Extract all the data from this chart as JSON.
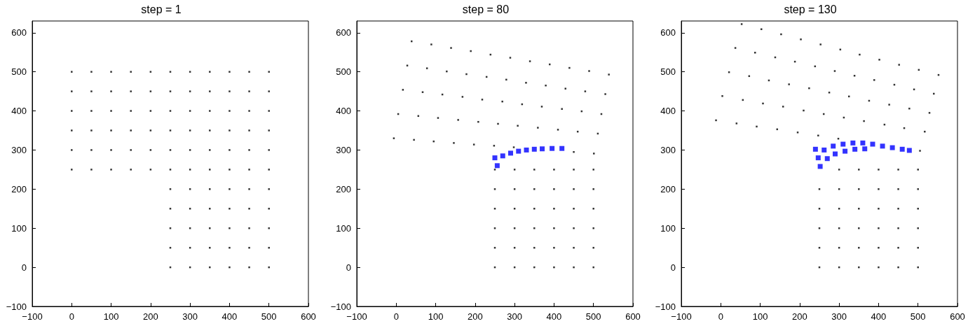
{
  "chart_data": [
    {
      "type": "scatter",
      "title": "step = 1",
      "xlim": [
        -100,
        600
      ],
      "xticks": [
        -100,
        0,
        100,
        200,
        300,
        400,
        500,
        600
      ],
      "ylim": [
        -100,
        630
      ],
      "yticks": [
        -100,
        0,
        100,
        200,
        300,
        400,
        500,
        600
      ],
      "marker": "square",
      "series": [
        {
          "color": "#000000",
          "x": [
            0,
            50,
            100,
            150,
            200,
            250,
            300,
            350,
            400,
            450,
            500,
            0,
            50,
            100,
            150,
            200,
            250,
            300,
            350,
            400,
            450,
            500,
            0,
            50,
            100,
            150,
            200,
            250,
            300,
            350,
            400,
            450,
            500,
            0,
            50,
            100,
            150,
            200,
            250,
            300,
            350,
            400,
            450,
            500,
            0,
            50,
            100,
            150,
            200,
            250,
            300,
            350,
            400,
            450,
            500,
            0,
            50,
            100,
            150,
            200,
            250,
            300,
            350,
            400,
            450,
            500,
            250,
            300,
            350,
            400,
            450,
            500,
            250,
            300,
            350,
            400,
            450,
            500,
            250,
            300,
            350,
            400,
            450,
            500,
            250,
            300,
            350,
            400,
            450,
            500,
            250,
            300,
            350,
            400,
            450,
            500
          ],
          "values": [
            250,
            250,
            250,
            250,
            250,
            250,
            250,
            250,
            250,
            250,
            250,
            300,
            300,
            300,
            300,
            300,
            300,
            300,
            300,
            300,
            300,
            300,
            350,
            350,
            350,
            350,
            350,
            350,
            350,
            350,
            350,
            350,
            350,
            400,
            400,
            400,
            400,
            400,
            400,
            400,
            400,
            400,
            400,
            400,
            450,
            450,
            450,
            450,
            450,
            450,
            450,
            450,
            450,
            450,
            450,
            500,
            500,
            500,
            500,
            500,
            500,
            500,
            500,
            500,
            500,
            500,
            0,
            0,
            0,
            0,
            0,
            0,
            50,
            50,
            50,
            50,
            50,
            50,
            100,
            100,
            100,
            100,
            100,
            100,
            150,
            150,
            150,
            150,
            150,
            150,
            200,
            200,
            200,
            200,
            200,
            200
          ]
        }
      ]
    },
    {
      "type": "scatter",
      "title": "step = 80",
      "xlim": [
        -100,
        600
      ],
      "xticks": [
        -100,
        0,
        100,
        200,
        300,
        400,
        500,
        600
      ],
      "ylim": [
        -100,
        630
      ],
      "yticks": [
        -100,
        0,
        100,
        200,
        300,
        400,
        500,
        600
      ],
      "marker": "square",
      "series": [
        {
          "color": "#000000",
          "x": [
            -6,
            45,
            95,
            146,
            197,
            248,
            298,
            450,
            501,
            5,
            56,
            106,
            157,
            208,
            258,
            308,
            359,
            410,
            460,
            511,
            17,
            67,
            117,
            168,
            218,
            269,
            319,
            369,
            420,
            470,
            520,
            28,
            78,
            128,
            178,
            229,
            279,
            329,
            379,
            429,
            479,
            530,
            39,
            89,
            139,
            189,
            239,
            289,
            339,
            389,
            439,
            489,
            539,
            250,
            300,
            350,
            400,
            450,
            500,
            250,
            300,
            350,
            400,
            450,
            500,
            250,
            300,
            350,
            400,
            450,
            500,
            250,
            300,
            350,
            400,
            450,
            500,
            250,
            300,
            350,
            400,
            450,
            500,
            250,
            300,
            350,
            400,
            450,
            500
          ],
          "values": [
            330,
            326,
            322,
            318,
            314,
            311,
            307,
            295,
            291,
            392,
            387,
            382,
            377,
            372,
            367,
            362,
            357,
            352,
            347,
            342,
            454,
            448,
            442,
            436,
            429,
            424,
            417,
            411,
            405,
            399,
            392,
            516,
            509,
            501,
            494,
            487,
            480,
            472,
            465,
            457,
            450,
            443,
            578,
            570,
            561,
            553,
            544,
            536,
            527,
            519,
            510,
            502,
            493,
            0,
            0,
            0,
            0,
            0,
            0,
            50,
            50,
            50,
            50,
            50,
            50,
            100,
            100,
            100,
            100,
            100,
            100,
            150,
            150,
            150,
            150,
            150,
            150,
            200,
            200,
            200,
            200,
            200,
            200,
            250,
            250,
            250,
            250,
            250,
            250
          ]
        },
        {
          "color": "#0000ff",
          "x": [
            250,
            256,
            270,
            290,
            310,
            330,
            350,
            370,
            395,
            420
          ],
          "values": [
            280,
            260,
            285,
            292,
            297,
            300,
            302,
            303,
            304,
            304
          ]
        }
      ]
    },
    {
      "type": "scatter",
      "title": "step = 130",
      "xlim": [
        -100,
        600
      ],
      "xticks": [
        -100,
        0,
        100,
        200,
        300,
        400,
        500,
        600
      ],
      "ylim": [
        -100,
        630
      ],
      "yticks": [
        -100,
        0,
        100,
        200,
        300,
        400,
        500,
        600
      ],
      "marker": "square",
      "series": [
        {
          "color": "#000000",
          "x": [
            -12,
            40,
            91,
            143,
            195,
            247,
            298,
            505,
            4,
            56,
            107,
            158,
            210,
            261,
            312,
            363,
            415,
            465,
            517,
            21,
            72,
            122,
            173,
            224,
            275,
            325,
            376,
            427,
            478,
            529,
            37,
            87,
            138,
            188,
            239,
            289,
            339,
            389,
            440,
            490,
            540,
            53,
            103,
            153,
            203,
            253,
            303,
            352,
            402,
            452,
            502,
            552,
            250,
            300,
            350,
            400,
            450,
            500,
            250,
            300,
            350,
            400,
            450,
            500,
            250,
            300,
            350,
            400,
            450,
            500,
            250,
            300,
            350,
            400,
            450,
            500,
            250,
            300,
            350,
            400,
            450,
            500,
            300,
            350,
            400,
            450,
            500
          ],
          "values": [
            376,
            368,
            360,
            353,
            345,
            337,
            329,
            298,
            438,
            428,
            419,
            411,
            401,
            392,
            383,
            374,
            365,
            356,
            347,
            499,
            489,
            478,
            468,
            458,
            447,
            437,
            426,
            416,
            406,
            395,
            561,
            549,
            537,
            526,
            514,
            502,
            490,
            479,
            467,
            455,
            444,
            622,
            609,
            596,
            583,
            570,
            557,
            544,
            531,
            518,
            505,
            492,
            0,
            0,
            0,
            0,
            0,
            0,
            50,
            50,
            50,
            50,
            50,
            50,
            100,
            100,
            100,
            100,
            100,
            100,
            150,
            150,
            150,
            150,
            150,
            150,
            200,
            200,
            200,
            200,
            200,
            200,
            250,
            250,
            250,
            250,
            250
          ]
        },
        {
          "color": "#0000ff",
          "x": [
            240,
            247,
            252,
            262,
            270,
            285,
            290,
            310,
            315,
            335,
            340,
            360,
            365,
            385,
            410,
            435,
            460,
            478
          ],
          "values": [
            302,
            280,
            258,
            300,
            278,
            310,
            290,
            315,
            297,
            318,
            302,
            318,
            303,
            315,
            310,
            306,
            302,
            299
          ]
        }
      ]
    }
  ]
}
